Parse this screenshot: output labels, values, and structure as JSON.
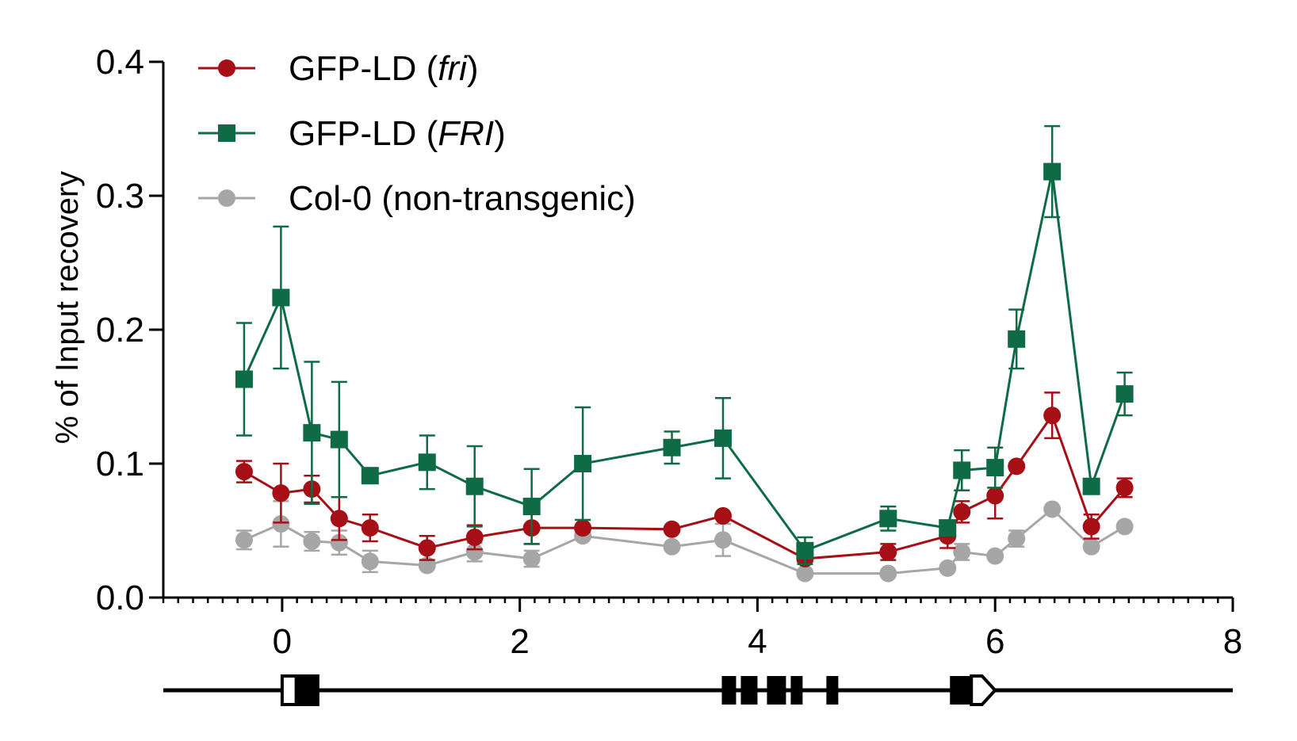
{
  "chart_data": {
    "type": "line",
    "title": "",
    "xlabel": "",
    "ylabel": "% of Input recovery",
    "xlim": [
      -1,
      8
    ],
    "ylim": [
      0,
      0.4
    ],
    "x_ticks": [
      0,
      2,
      4,
      6,
      8
    ],
    "y_ticks": [
      0.0,
      0.1,
      0.2,
      0.3,
      0.4
    ],
    "x_tick_labels": [
      "0",
      "2",
      "4",
      "6",
      "8"
    ],
    "y_tick_labels": [
      "0.0",
      "0.1",
      "0.2",
      "0.3",
      "0.4"
    ],
    "grid": false,
    "legend_position": "top-left",
    "series": [
      {
        "name_prefix": "GFP-LD (",
        "name_italic": "fri",
        "name_suffix": ")",
        "color": "#a50f15",
        "marker": "circle",
        "x": [
          -0.32,
          -0.01,
          0.25,
          0.48,
          0.74,
          1.22,
          1.62,
          2.1,
          2.53,
          3.28,
          3.71,
          4.4,
          5.1,
          5.6,
          5.72,
          6.0,
          6.18,
          6.48,
          6.81,
          7.09
        ],
        "y": [
          0.094,
          0.078,
          0.081,
          0.059,
          0.052,
          0.037,
          0.045,
          0.052,
          0.052,
          0.051,
          0.061,
          0.029,
          0.034,
          0.046,
          0.064,
          0.076,
          0.098,
          0.136,
          0.053,
          0.082
        ],
        "err": [
          0.008,
          0.022,
          0.01,
          0.016,
          0.01,
          0.009,
          0.009,
          0.012,
          0.0,
          0.0,
          0.0,
          0.0,
          0.006,
          0.009,
          0.008,
          0.017,
          0.0,
          0.017,
          0.009,
          0.007
        ]
      },
      {
        "name_prefix": "GFP-LD (",
        "name_italic": "FRI",
        "name_suffix": ")",
        "color": "#0f6b45",
        "marker": "square",
        "x": [
          -0.32,
          -0.01,
          0.25,
          0.48,
          0.74,
          1.22,
          1.62,
          2.1,
          2.53,
          3.28,
          3.71,
          4.4,
          5.1,
          5.6,
          5.72,
          6.0,
          6.18,
          6.48,
          6.81,
          7.09
        ],
        "y": [
          0.163,
          0.224,
          0.123,
          0.118,
          0.091,
          0.101,
          0.083,
          0.068,
          0.1,
          0.112,
          0.119,
          0.035,
          0.059,
          0.052,
          0.095,
          0.097,
          0.193,
          0.318,
          0.083,
          0.152
        ],
        "err": [
          0.042,
          0.053,
          0.053,
          0.043,
          0.0,
          0.02,
          0.03,
          0.028,
          0.042,
          0.012,
          0.03,
          0.01,
          0.009,
          0.0,
          0.015,
          0.015,
          0.022,
          0.034,
          0.0,
          0.016
        ]
      },
      {
        "name_prefix": "Col-0 (non-transgenic)",
        "name_italic": "",
        "name_suffix": "",
        "color": "#a6a6a6",
        "marker": "circle",
        "x": [
          -0.32,
          -0.01,
          0.25,
          0.48,
          0.74,
          1.22,
          1.62,
          2.1,
          2.53,
          3.28,
          3.71,
          4.4,
          5.1,
          5.6,
          5.72,
          6.0,
          6.18,
          6.48,
          6.81,
          7.09
        ],
        "y": [
          0.043,
          0.055,
          0.042,
          0.041,
          0.027,
          0.024,
          0.034,
          0.029,
          0.046,
          0.038,
          0.043,
          0.018,
          0.018,
          0.022,
          0.034,
          0.031,
          0.044,
          0.066,
          0.038,
          0.053
        ],
        "err": [
          0.007,
          0.017,
          0.007,
          0.009,
          0.008,
          0.0,
          0.007,
          0.006,
          0.0,
          0.0,
          0.012,
          0.0,
          0.0,
          0.0,
          0.006,
          0.0,
          0.006,
          0.0,
          0.0,
          0.0
        ]
      }
    ],
    "gene_model": {
      "blocks": [
        {
          "start": 0.0,
          "end": 0.3,
          "style": "outlined"
        },
        {
          "start": 3.7,
          "end": 3.82,
          "style": "solid"
        },
        {
          "start": 3.86,
          "end": 4.0,
          "style": "solid"
        },
        {
          "start": 4.08,
          "end": 4.24,
          "style": "solid"
        },
        {
          "start": 4.28,
          "end": 4.38,
          "style": "solid"
        },
        {
          "start": 4.58,
          "end": 4.68,
          "style": "solid"
        },
        {
          "start": 5.62,
          "end": 5.8,
          "style": "solid"
        }
      ],
      "arrow": {
        "start": 5.8,
        "end": 6.0
      }
    }
  }
}
